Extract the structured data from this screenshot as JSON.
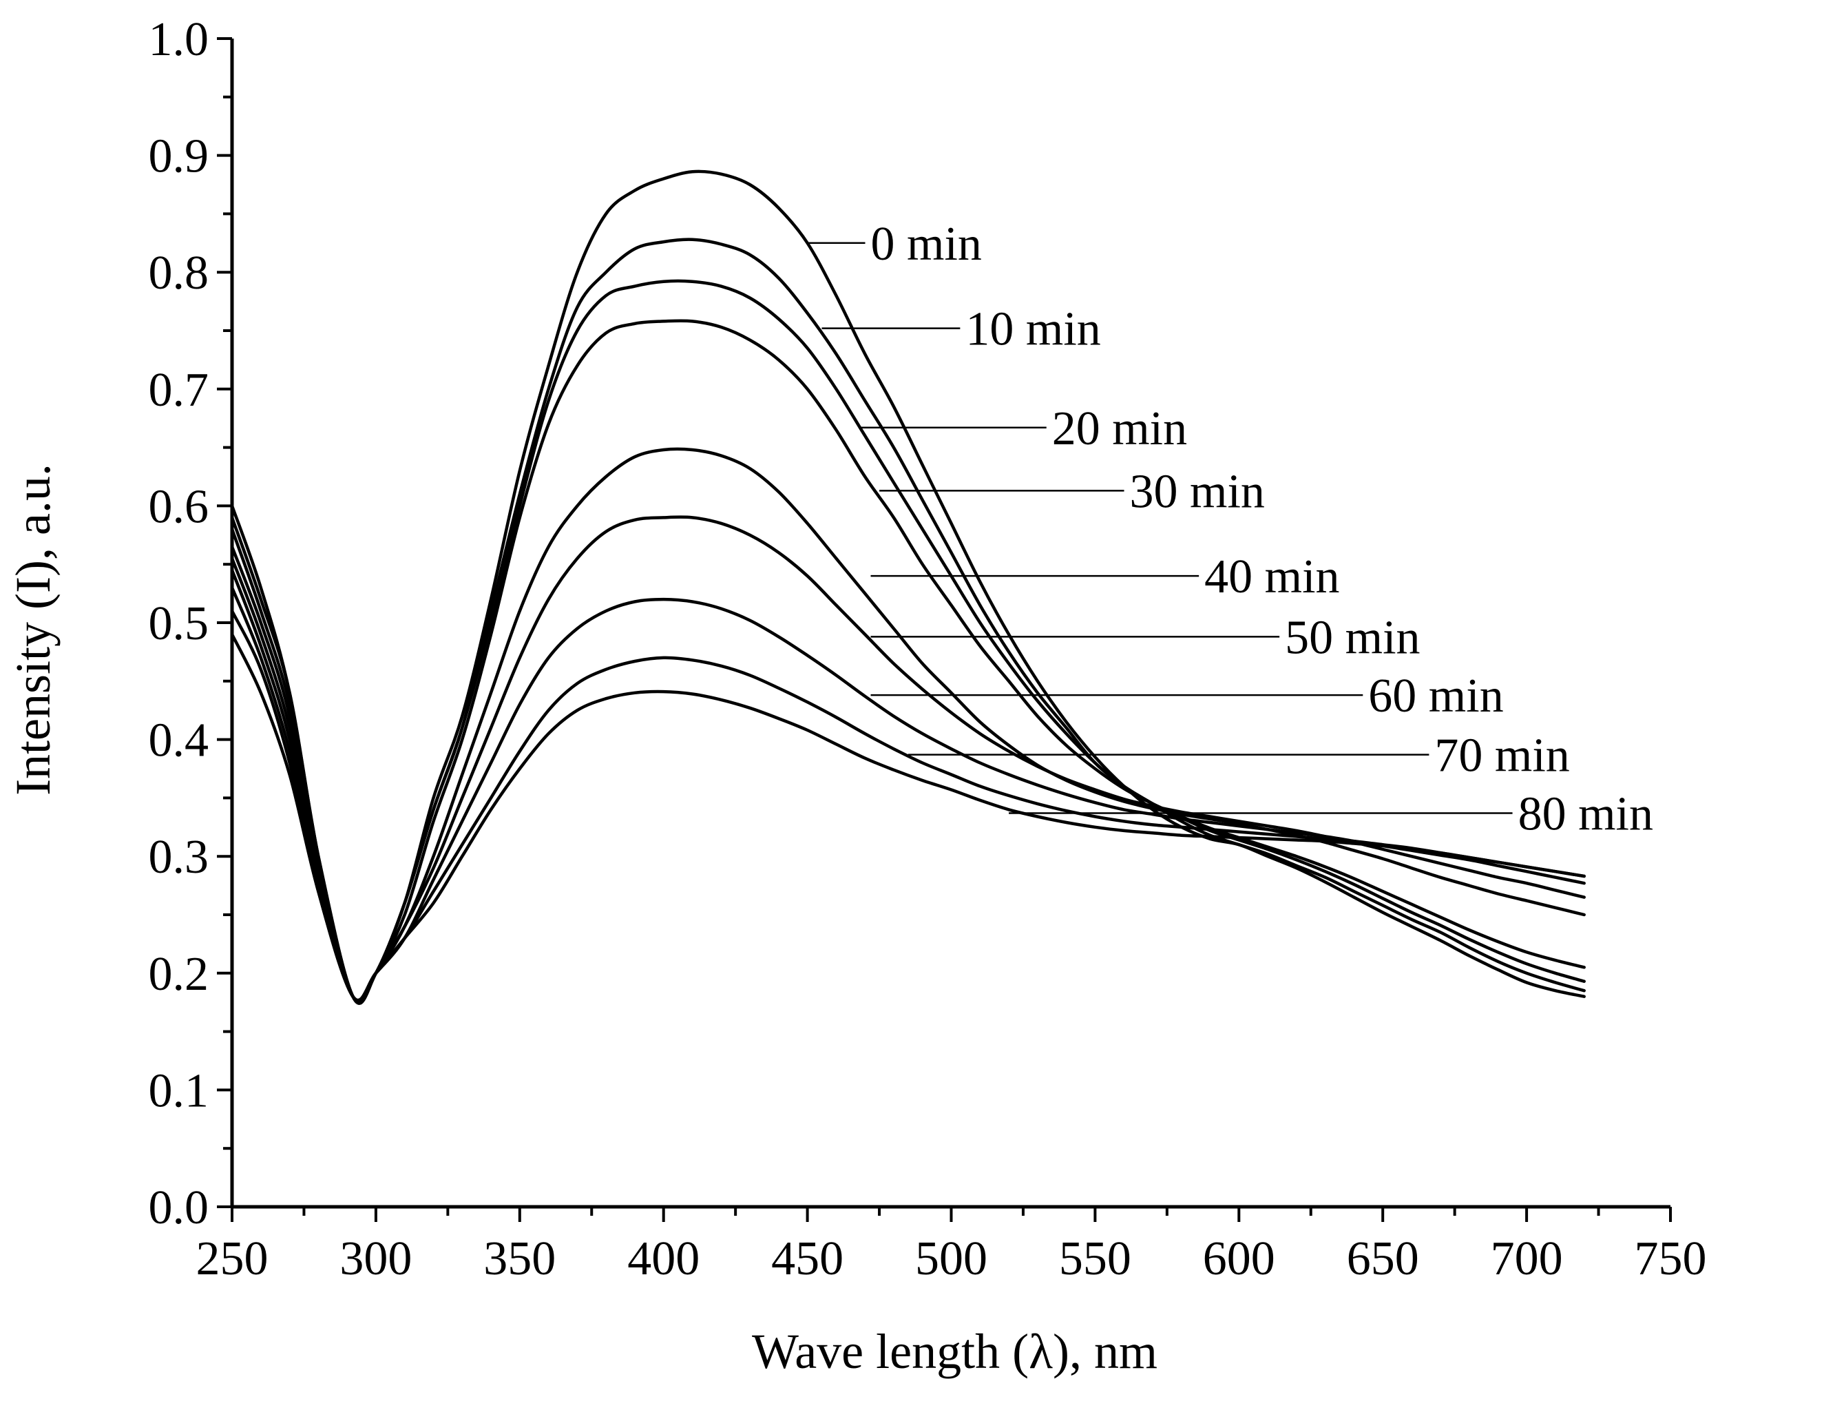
{
  "chart_data": {
    "type": "line",
    "title": "",
    "xlabel": "Wave length (λ), nm",
    "ylabel": "Intensity (I), a.u.",
    "xlim": [
      250,
      750
    ],
    "ylim": [
      0.0,
      1.0
    ],
    "x_ticks": [
      250,
      300,
      350,
      400,
      450,
      500,
      550,
      600,
      650,
      700,
      750
    ],
    "x_tick_labels": [
      "250",
      "300",
      "350",
      "400",
      "450",
      "500",
      "550",
      "600",
      "650",
      "700",
      "750"
    ],
    "y_ticks": [
      0.0,
      0.1,
      0.2,
      0.3,
      0.4,
      0.5,
      0.6,
      0.7,
      0.8,
      0.9,
      1.0
    ],
    "y_tick_labels": [
      "0.0",
      "0.1",
      "0.2",
      "0.3",
      "0.4",
      "0.5",
      "0.6",
      "0.7",
      "0.8",
      "0.9",
      "1.0"
    ],
    "x_minor_step": 25,
    "y_minor_step": 0.05,
    "grid": false,
    "legend": "inline labels with leader lines",
    "x": [
      250,
      260,
      270,
      280,
      292,
      300,
      310,
      320,
      330,
      340,
      350,
      360,
      370,
      380,
      390,
      400,
      410,
      420,
      430,
      440,
      450,
      460,
      470,
      480,
      490,
      500,
      510,
      520,
      530,
      540,
      550,
      560,
      570,
      580,
      590,
      600,
      610,
      620,
      630,
      640,
      650,
      660,
      670,
      680,
      690,
      700,
      710,
      720
    ],
    "series": [
      {
        "name": "0 min",
        "label_x": 450,
        "label_y": 0.825,
        "text_x": 472,
        "text_y": 0.825,
        "values": [
          0.6,
          0.53,
          0.44,
          0.3,
          0.18,
          0.2,
          0.26,
          0.35,
          0.42,
          0.52,
          0.63,
          0.72,
          0.8,
          0.85,
          0.87,
          0.88,
          0.886,
          0.884,
          0.875,
          0.855,
          0.825,
          0.78,
          0.73,
          0.685,
          0.635,
          0.585,
          0.535,
          0.49,
          0.45,
          0.415,
          0.385,
          0.36,
          0.34,
          0.325,
          0.315,
          0.31,
          0.3,
          0.29,
          0.278,
          0.265,
          0.252,
          0.24,
          0.228,
          0.215,
          0.203,
          0.192,
          0.185,
          0.18
        ]
      },
      {
        "name": "10 min",
        "label_x": 455,
        "label_y": 0.752,
        "text_x": 505,
        "text_y": 0.752,
        "values": [
          0.59,
          0.52,
          0.44,
          0.3,
          0.18,
          0.2,
          0.26,
          0.34,
          0.41,
          0.51,
          0.61,
          0.7,
          0.77,
          0.8,
          0.82,
          0.826,
          0.828,
          0.824,
          0.815,
          0.795,
          0.765,
          0.73,
          0.69,
          0.65,
          0.605,
          0.56,
          0.515,
          0.475,
          0.44,
          0.41,
          0.38,
          0.36,
          0.345,
          0.33,
          0.318,
          0.31,
          0.302,
          0.292,
          0.282,
          0.27,
          0.258,
          0.246,
          0.235,
          0.222,
          0.21,
          0.2,
          0.192,
          0.185
        ]
      },
      {
        "name": "20 min",
        "label_x": 468,
        "label_y": 0.667,
        "text_x": 535,
        "text_y": 0.667,
        "values": [
          0.58,
          0.51,
          0.43,
          0.3,
          0.18,
          0.2,
          0.26,
          0.34,
          0.41,
          0.5,
          0.6,
          0.69,
          0.75,
          0.78,
          0.788,
          0.792,
          0.792,
          0.788,
          0.778,
          0.76,
          0.735,
          0.7,
          0.66,
          0.62,
          0.58,
          0.54,
          0.5,
          0.465,
          0.433,
          0.405,
          0.38,
          0.36,
          0.345,
          0.333,
          0.322,
          0.314,
          0.306,
          0.297,
          0.287,
          0.276,
          0.264,
          0.252,
          0.241,
          0.229,
          0.218,
          0.208,
          0.2,
          0.193
        ]
      },
      {
        "name": "30 min",
        "label_x": 475,
        "label_y": 0.613,
        "text_x": 562,
        "text_y": 0.613,
        "values": [
          0.565,
          0.5,
          0.42,
          0.29,
          0.18,
          0.2,
          0.25,
          0.33,
          0.4,
          0.49,
          0.59,
          0.67,
          0.72,
          0.748,
          0.756,
          0.758,
          0.758,
          0.753,
          0.742,
          0.725,
          0.7,
          0.665,
          0.625,
          0.59,
          0.55,
          0.515,
          0.48,
          0.45,
          0.42,
          0.395,
          0.375,
          0.358,
          0.345,
          0.334,
          0.324,
          0.316,
          0.308,
          0.3,
          0.291,
          0.281,
          0.27,
          0.259,
          0.248,
          0.237,
          0.227,
          0.218,
          0.211,
          0.205
        ]
      },
      {
        "name": "40 min",
        "label_x": 472,
        "label_y": 0.54,
        "text_x": 588,
        "text_y": 0.54,
        "values": [
          0.555,
          0.49,
          0.41,
          0.29,
          0.18,
          0.2,
          0.24,
          0.3,
          0.37,
          0.44,
          0.51,
          0.565,
          0.6,
          0.625,
          0.642,
          0.648,
          0.648,
          0.643,
          0.632,
          0.612,
          0.585,
          0.555,
          0.525,
          0.495,
          0.465,
          0.44,
          0.415,
          0.395,
          0.378,
          0.365,
          0.355,
          0.347,
          0.341,
          0.336,
          0.332,
          0.328,
          0.323,
          0.318,
          0.312,
          0.305,
          0.298,
          0.29,
          0.282,
          0.275,
          0.268,
          0.262,
          0.256,
          0.25
        ]
      },
      {
        "name": "50 min",
        "label_x": 472,
        "label_y": 0.488,
        "text_x": 616,
        "text_y": 0.488,
        "values": [
          0.545,
          0.48,
          0.4,
          0.28,
          0.18,
          0.2,
          0.24,
          0.29,
          0.35,
          0.41,
          0.47,
          0.52,
          0.555,
          0.578,
          0.588,
          0.59,
          0.59,
          0.585,
          0.575,
          0.56,
          0.54,
          0.515,
          0.49,
          0.465,
          0.443,
          0.423,
          0.405,
          0.39,
          0.377,
          0.366,
          0.357,
          0.349,
          0.343,
          0.338,
          0.334,
          0.33,
          0.326,
          0.322,
          0.317,
          0.312,
          0.306,
          0.3,
          0.294,
          0.288,
          0.282,
          0.277,
          0.271,
          0.265
        ]
      },
      {
        "name": "60 min",
        "label_x": 472,
        "label_y": 0.438,
        "text_x": 645,
        "text_y": 0.438,
        "values": [
          0.53,
          0.47,
          0.39,
          0.28,
          0.18,
          0.2,
          0.23,
          0.28,
          0.33,
          0.38,
          0.43,
          0.47,
          0.495,
          0.51,
          0.518,
          0.52,
          0.518,
          0.512,
          0.502,
          0.488,
          0.472,
          0.455,
          0.437,
          0.42,
          0.405,
          0.392,
          0.38,
          0.37,
          0.361,
          0.353,
          0.346,
          0.34,
          0.336,
          0.332,
          0.329,
          0.326,
          0.323,
          0.32,
          0.317,
          0.313,
          0.309,
          0.305,
          0.301,
          0.297,
          0.292,
          0.287,
          0.282,
          0.277
        ]
      },
      {
        "name": "70 min",
        "label_x": 485,
        "label_y": 0.387,
        "text_x": 668,
        "text_y": 0.387,
        "values": [
          0.51,
          0.46,
          0.38,
          0.27,
          0.18,
          0.2,
          0.23,
          0.27,
          0.31,
          0.35,
          0.39,
          0.425,
          0.448,
          0.46,
          0.467,
          0.47,
          0.468,
          0.463,
          0.455,
          0.444,
          0.432,
          0.419,
          0.405,
          0.392,
          0.38,
          0.37,
          0.36,
          0.352,
          0.345,
          0.339,
          0.334,
          0.33,
          0.327,
          0.325,
          0.323,
          0.321,
          0.319,
          0.317,
          0.315,
          0.313,
          0.31,
          0.307,
          0.303,
          0.299,
          0.295,
          0.291,
          0.287,
          0.283
        ]
      },
      {
        "name": "80 min",
        "label_x": 520,
        "label_y": 0.337,
        "text_x": 697,
        "text_y": 0.337,
        "values": [
          0.49,
          0.44,
          0.37,
          0.27,
          0.18,
          0.2,
          0.23,
          0.26,
          0.3,
          0.34,
          0.375,
          0.405,
          0.425,
          0.435,
          0.44,
          0.441,
          0.439,
          0.434,
          0.427,
          0.418,
          0.408,
          0.396,
          0.384,
          0.374,
          0.365,
          0.357,
          0.348,
          0.34,
          0.334,
          0.329,
          0.325,
          0.322,
          0.32,
          0.318,
          0.317,
          0.316,
          0.315,
          0.314,
          0.313,
          0.311,
          0.309,
          0.306,
          0.303,
          0.299,
          0.295,
          0.291,
          0.287,
          0.283
        ]
      }
    ]
  }
}
